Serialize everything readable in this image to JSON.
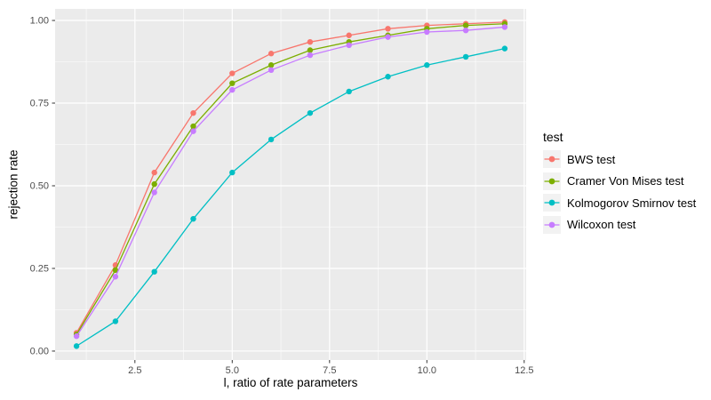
{
  "chart_data": {
    "type": "line",
    "title": "",
    "xlabel": "l, ratio of rate parameters",
    "ylabel": "rejection rate",
    "legend_title": "test",
    "legend_position": "right",
    "grid": true,
    "x": [
      1,
      2,
      3,
      4,
      5,
      6,
      7,
      8,
      9,
      10,
      11,
      12
    ],
    "series": [
      {
        "name": "BWS test",
        "color": "#F8766D",
        "values": [
          0.055,
          0.26,
          0.54,
          0.72,
          0.84,
          0.9,
          0.935,
          0.955,
          0.975,
          0.985,
          0.99,
          0.995
        ]
      },
      {
        "name": "Cramer Von Mises test",
        "color": "#7CAE00",
        "values": [
          0.05,
          0.245,
          0.505,
          0.68,
          0.81,
          0.865,
          0.91,
          0.935,
          0.955,
          0.975,
          0.985,
          0.99
        ]
      },
      {
        "name": "Kolmogorov Smirnov test",
        "color": "#00BFC4",
        "values": [
          0.015,
          0.09,
          0.24,
          0.4,
          0.54,
          0.64,
          0.72,
          0.785,
          0.83,
          0.865,
          0.89,
          0.915
        ]
      },
      {
        "name": "Wilcoxon test",
        "color": "#C77CFF",
        "values": [
          0.045,
          0.225,
          0.48,
          0.665,
          0.79,
          0.85,
          0.895,
          0.925,
          0.95,
          0.965,
          0.97,
          0.98
        ]
      }
    ],
    "x_ticks": [
      2.5,
      5.0,
      7.5,
      10.0,
      12.5
    ],
    "x_tick_labels": [
      "2.5",
      "5.0",
      "7.5",
      "10.0",
      "12.5"
    ],
    "y_ticks": [
      0,
      0.25,
      0.5,
      0.75,
      1.0
    ],
    "y_tick_labels": [
      "0.00",
      "0.25",
      "0.50",
      "0.75",
      "1.00"
    ],
    "xlim": [
      0.45,
      12.55
    ],
    "ylim": [
      -0.027,
      1.035
    ],
    "panel_bg": "#EBEBEB",
    "grid_color": "#FFFFFF",
    "tick_color": "#333333",
    "tick_label_color": "#4D4D4D",
    "axis_title_color": "#000000",
    "legend_key_bg": "#F2F2F2"
  }
}
